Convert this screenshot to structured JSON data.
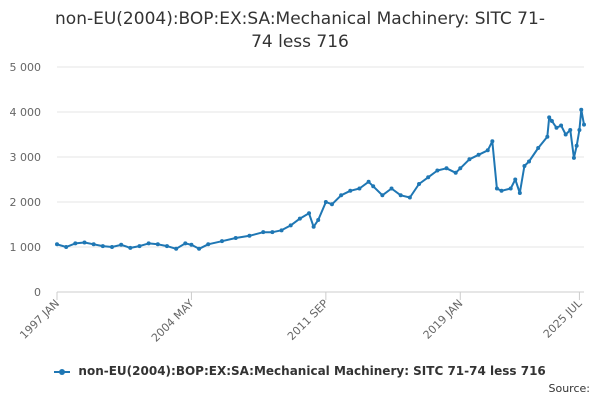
{
  "chart_data": {
    "type": "line",
    "title_line1": "non-EU(2004):BOP:EX:SA:Mechanical Machinery: SITC 71-",
    "title_line2": "74 less 716",
    "y_ticks": [
      "0",
      "1 000",
      "2 000",
      "3 000",
      "4 000",
      "5 000"
    ],
    "ylim": [
      0,
      5000
    ],
    "x_tick_labels": [
      "1997 JAN",
      "2004 MAY",
      "2011 SEP",
      "2019 JAN",
      "2025 JUL"
    ],
    "x_tick_positions": [
      1997.0,
      2004.333,
      2011.667,
      2019.0,
      2025.5
    ],
    "xlim": [
      1997.0,
      2025.75
    ],
    "grid": "horizontal",
    "legend_position": "bottom",
    "series": [
      {
        "name": "non-EU(2004):BOP:EX:SA:Mechanical Machinery: SITC 71-74 less 716",
        "color": "#1f77b4",
        "points": [
          [
            1997.0,
            1060
          ],
          [
            1997.5,
            1000
          ],
          [
            1998.0,
            1080
          ],
          [
            1998.5,
            1100
          ],
          [
            1999.0,
            1060
          ],
          [
            1999.5,
            1020
          ],
          [
            2000.0,
            1000
          ],
          [
            2000.5,
            1050
          ],
          [
            2001.0,
            980
          ],
          [
            2001.5,
            1020
          ],
          [
            2002.0,
            1080
          ],
          [
            2002.5,
            1060
          ],
          [
            2003.0,
            1020
          ],
          [
            2003.5,
            960
          ],
          [
            2004.0,
            1080
          ],
          [
            2004.333,
            1050
          ],
          [
            2004.75,
            960
          ],
          [
            2005.25,
            1060
          ],
          [
            2006.0,
            1130
          ],
          [
            2006.75,
            1200
          ],
          [
            2007.5,
            1250
          ],
          [
            2008.25,
            1330
          ],
          [
            2008.75,
            1330
          ],
          [
            2009.25,
            1370
          ],
          [
            2009.75,
            1480
          ],
          [
            2010.25,
            1630
          ],
          [
            2010.75,
            1750
          ],
          [
            2011.0,
            1450
          ],
          [
            2011.25,
            1600
          ],
          [
            2011.667,
            2000
          ],
          [
            2012.0,
            1950
          ],
          [
            2012.5,
            2150
          ],
          [
            2013.0,
            2250
          ],
          [
            2013.5,
            2300
          ],
          [
            2014.0,
            2450
          ],
          [
            2014.25,
            2350
          ],
          [
            2014.75,
            2150
          ],
          [
            2015.25,
            2300
          ],
          [
            2015.75,
            2150
          ],
          [
            2016.25,
            2100
          ],
          [
            2016.75,
            2400
          ],
          [
            2017.25,
            2550
          ],
          [
            2017.75,
            2700
          ],
          [
            2018.25,
            2750
          ],
          [
            2018.75,
            2650
          ],
          [
            2019.0,
            2750
          ],
          [
            2019.5,
            2950
          ],
          [
            2020.0,
            3050
          ],
          [
            2020.5,
            3150
          ],
          [
            2020.75,
            3350
          ],
          [
            2021.0,
            2300
          ],
          [
            2021.25,
            2250
          ],
          [
            2021.75,
            2300
          ],
          [
            2022.0,
            2500
          ],
          [
            2022.25,
            2200
          ],
          [
            2022.5,
            2800
          ],
          [
            2022.75,
            2900
          ],
          [
            2023.25,
            3200
          ],
          [
            2023.75,
            3450
          ],
          [
            2023.85,
            3880
          ],
          [
            2024.0,
            3800
          ],
          [
            2024.25,
            3650
          ],
          [
            2024.5,
            3700
          ],
          [
            2024.75,
            3500
          ],
          [
            2025.0,
            3600
          ],
          [
            2025.2,
            2980
          ],
          [
            2025.35,
            3250
          ],
          [
            2025.5,
            3600
          ],
          [
            2025.6,
            4050
          ],
          [
            2025.75,
            3720
          ]
        ]
      }
    ]
  },
  "source_label": "Source:"
}
